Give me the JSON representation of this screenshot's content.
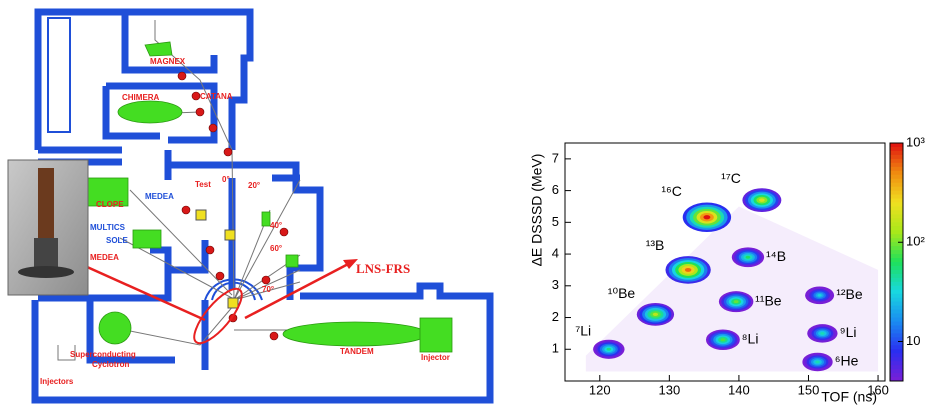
{
  "diagram": {
    "labels": [
      "MAGNEX",
      "CHIMERA",
      "CATANA",
      "Test",
      "0°",
      "20°",
      "CLOPE",
      "MEDEA",
      "MULTICS",
      "SOLE",
      "MEDEA",
      "40°",
      "60°",
      "70°",
      "LNS-FRS",
      "Superconducting",
      "Cyclotron",
      "TANDEM",
      "Injector",
      "Injectors"
    ]
  },
  "chart_data": {
    "type": "heatmap",
    "xlabel": "TOF (ns)",
    "ylabel": "ΔE DSSSD (MeV)",
    "xlim": [
      115,
      161
    ],
    "ylim": [
      0,
      7.5
    ],
    "xticks": [
      120,
      130,
      140,
      150,
      160
    ],
    "yticks": [
      1,
      2,
      3,
      4,
      5,
      6,
      7
    ],
    "zscale": "log",
    "zlim": [
      4,
      1000
    ],
    "zticks": [
      {
        "value": 10,
        "label": "10"
      },
      {
        "value": 100,
        "label": "10²"
      },
      {
        "value": 1000,
        "label": "10³"
      }
    ],
    "colormap": [
      "#7a1fd6",
      "#2a2ef0",
      "#1a8cf0",
      "#18d8e0",
      "#1ee05a",
      "#a8e81a",
      "#f0e020",
      "#f08a10",
      "#e01010"
    ],
    "clusters": [
      {
        "label": "¹⁶C",
        "x": 135.4,
        "y": 5.16,
        "peak": 1000
      },
      {
        "label": "¹⁷C",
        "x": 143.3,
        "y": 5.7,
        "peak": 200
      },
      {
        "label": "¹³B",
        "x": 132.7,
        "y": 3.5,
        "peak": 600
      },
      {
        "label": "¹⁴B",
        "x": 141.3,
        "y": 3.9,
        "peak": 60
      },
      {
        "label": "¹⁰Be",
        "x": 128,
        "y": 2.1,
        "peak": 150
      },
      {
        "label": "¹¹Be",
        "x": 139.6,
        "y": 2.5,
        "peak": 90
      },
      {
        "label": "¹²Be",
        "x": 151.6,
        "y": 2.7,
        "peak": 30
      },
      {
        "label": "⁷Li",
        "x": 121.3,
        "y": 1.0,
        "peak": 50
      },
      {
        "label": "⁸Li",
        "x": 137.7,
        "y": 1.3,
        "peak": 80
      },
      {
        "label": "⁹Li",
        "x": 152,
        "y": 1.5,
        "peak": 40
      },
      {
        "label": "⁶He",
        "x": 151.3,
        "y": 0.6,
        "peak": 40
      }
    ]
  }
}
